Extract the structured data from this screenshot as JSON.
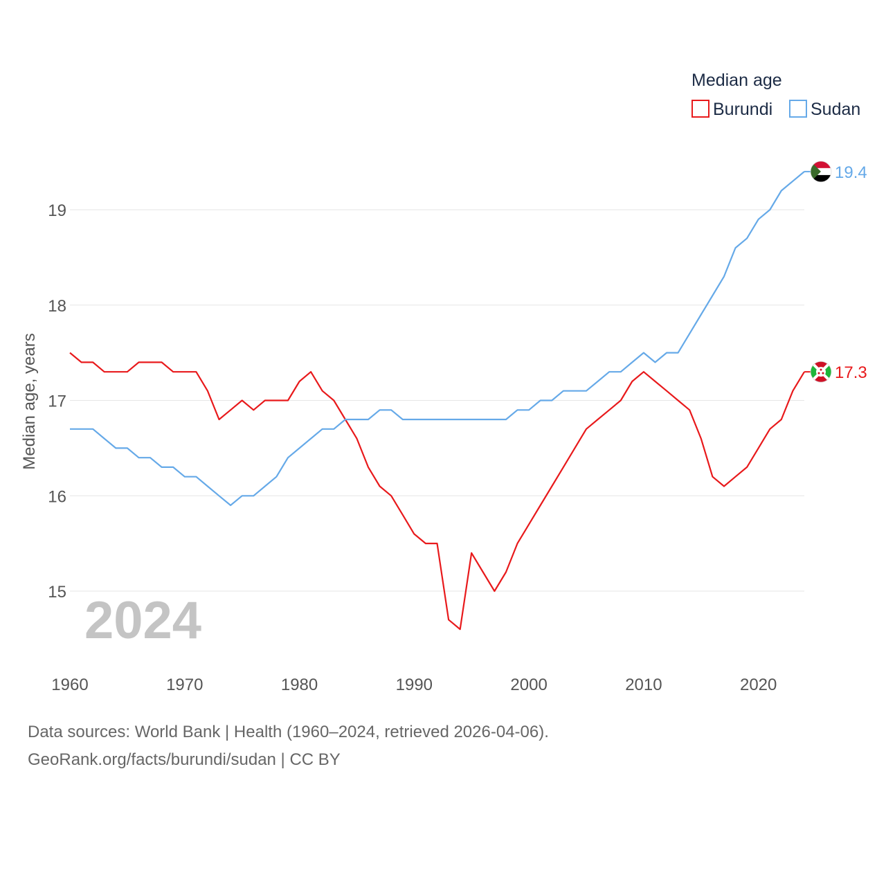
{
  "chart_data": {
    "type": "line",
    "ylabel": "Median age, years",
    "xlim": [
      1960,
      2024
    ],
    "ylim": [
      14.3,
      19.6
    ],
    "yticks": [
      15,
      16,
      17,
      18,
      19
    ],
    "xticks": [
      1960,
      1970,
      1980,
      1990,
      2000,
      2010,
      2020
    ],
    "current_year_label": "2024",
    "legend": {
      "title": "Median age",
      "position": "top-right"
    },
    "x": [
      1960,
      1961,
      1962,
      1963,
      1964,
      1965,
      1966,
      1967,
      1968,
      1969,
      1970,
      1971,
      1972,
      1973,
      1974,
      1975,
      1976,
      1977,
      1978,
      1979,
      1980,
      1981,
      1982,
      1983,
      1984,
      1985,
      1986,
      1987,
      1988,
      1989,
      1990,
      1991,
      1992,
      1993,
      1994,
      1995,
      1996,
      1997,
      1998,
      1999,
      2000,
      2001,
      2002,
      2003,
      2004,
      2005,
      2006,
      2007,
      2008,
      2009,
      2010,
      2011,
      2012,
      2013,
      2014,
      2015,
      2016,
      2017,
      2018,
      2019,
      2020,
      2021,
      2022,
      2023,
      2024
    ],
    "series": [
      {
        "name": "Burundi",
        "color": "#e8191b",
        "end_label": "17.3",
        "flag": "burundi-flag",
        "values": [
          17.5,
          17.4,
          17.4,
          17.3,
          17.3,
          17.3,
          17.4,
          17.4,
          17.4,
          17.3,
          17.3,
          17.3,
          17.1,
          16.8,
          16.9,
          17.0,
          16.9,
          17.0,
          17.0,
          17.0,
          17.2,
          17.3,
          17.1,
          17.0,
          16.8,
          16.6,
          16.3,
          16.1,
          16.0,
          15.8,
          15.6,
          15.5,
          15.5,
          14.7,
          14.6,
          15.4,
          15.2,
          15.0,
          15.2,
          15.5,
          15.7,
          15.9,
          16.1,
          16.3,
          16.5,
          16.7,
          16.8,
          16.9,
          17.0,
          17.2,
          17.3,
          17.2,
          17.1,
          17.0,
          16.9,
          16.6,
          16.2,
          16.1,
          16.2,
          16.3,
          16.5,
          16.7,
          16.8,
          17.1,
          17.3
        ]
      },
      {
        "name": "Sudan",
        "color": "#65a9e8",
        "end_label": "19.4",
        "flag": "sudan-flag",
        "values": [
          16.7,
          16.7,
          16.7,
          16.6,
          16.5,
          16.5,
          16.4,
          16.4,
          16.3,
          16.3,
          16.2,
          16.2,
          16.1,
          16.0,
          15.9,
          16.0,
          16.0,
          16.1,
          16.2,
          16.4,
          16.5,
          16.6,
          16.7,
          16.7,
          16.8,
          16.8,
          16.8,
          16.9,
          16.9,
          16.8,
          16.8,
          16.8,
          16.8,
          16.8,
          16.8,
          16.8,
          16.8,
          16.8,
          16.8,
          16.9,
          16.9,
          17.0,
          17.0,
          17.1,
          17.1,
          17.1,
          17.2,
          17.3,
          17.3,
          17.4,
          17.5,
          17.4,
          17.5,
          17.5,
          17.7,
          17.9,
          18.1,
          18.3,
          18.6,
          18.7,
          18.9,
          19.0,
          19.2,
          19.3,
          19.4
        ]
      }
    ]
  },
  "footer": {
    "source_line": "Data sources: World Bank | Health (1960–2024, retrieved 2026-04-06).",
    "credit_line": "GeoRank.org/facts/burundi/sudan | CC BY"
  }
}
